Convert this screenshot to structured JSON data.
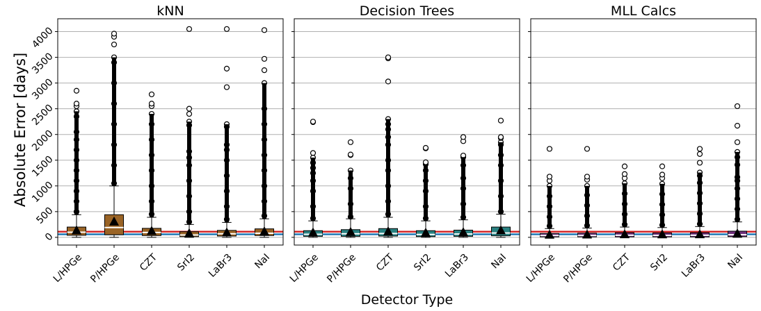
{
  "figure": {
    "ylabel": "Absolute Error [days]",
    "xlabel": "Detector Type"
  },
  "colors": {
    "red_line": "#d62728",
    "blue_line": "#1f77b4",
    "knn_box": "#9a6426",
    "dt_box": "#2a8282",
    "mll_box": "#6e2f7a",
    "grid": "#b0b0b0"
  },
  "chart_data": [
    {
      "type": "box",
      "title": "kNN",
      "categories": [
        "L/HPGe",
        "P/HPGe",
        "CZT",
        "SrI2",
        "LaBr3",
        "NaI"
      ],
      "yticks": [
        0,
        500,
        1000,
        1500,
        2000,
        2500,
        3000,
        3500,
        4000
      ],
      "ylim": [
        -150,
        4250
      ],
      "grid": "y",
      "reference_lines": [
        {
          "color": "red",
          "value": 110
        },
        {
          "color": "blue",
          "value": 60
        }
      ],
      "box_color": "#9a6426",
      "boxes": [
        {
          "q1": 40,
          "median": 100,
          "q3": 200,
          "whisker_low": 0,
          "whisker_high": 440,
          "mean": 140,
          "fliers": [
            500,
            700,
            900,
            1100,
            1300,
            1500,
            1700,
            1900,
            2050,
            2350,
            2450,
            2550,
            2600,
            2850
          ]
        },
        {
          "q1": 50,
          "median": 190,
          "q3": 440,
          "whisker_low": 0,
          "whisker_high": 1000,
          "mean": 310,
          "fliers": [
            1050,
            1400,
            1800,
            2200,
            2600,
            3000,
            3400,
            3500,
            3750,
            3900,
            3960
          ]
        },
        {
          "q1": 35,
          "median": 95,
          "q3": 175,
          "whisker_low": 0,
          "whisker_high": 390,
          "mean": 130,
          "fliers": [
            450,
            700,
            1000,
            1300,
            1600,
            1900,
            2200,
            2400,
            2550,
            2600,
            2780
          ]
        },
        {
          "q1": 15,
          "median": 45,
          "q3": 110,
          "whisker_low": 0,
          "whisker_high": 250,
          "mean": 85,
          "fliers": [
            300,
            500,
            800,
            1100,
            1400,
            1550,
            1670,
            2180,
            2250,
            2400,
            2500,
            4050
          ]
        },
        {
          "q1": 25,
          "median": 70,
          "q3": 135,
          "whisker_low": 0,
          "whisker_high": 290,
          "mean": 100,
          "fliers": [
            350,
            600,
            900,
            1200,
            1500,
            1700,
            1800,
            2150,
            2200,
            2920,
            3280,
            4050
          ]
        },
        {
          "q1": 35,
          "median": 80,
          "q3": 165,
          "whisker_low": 0,
          "whisker_high": 360,
          "mean": 120,
          "fliers": [
            420,
            700,
            1000,
            1300,
            1600,
            1900,
            2200,
            2500,
            3000,
            3250,
            3470,
            4030
          ]
        }
      ]
    },
    {
      "type": "box",
      "title": "Decision Trees",
      "categories": [
        "L/HPGe",
        "P/HPGe",
        "CZT",
        "SrI2",
        "LaBr3",
        "NaI"
      ],
      "yticks": [
        0,
        500,
        1000,
        1500,
        2000,
        2500,
        3000,
        3500,
        4000
      ],
      "ylim": [
        -150,
        4250
      ],
      "grid": "y",
      "reference_lines": [
        {
          "color": "red",
          "value": 110
        },
        {
          "color": "blue",
          "value": 60
        }
      ],
      "box_color": "#2a8282",
      "boxes": [
        {
          "q1": 20,
          "median": 60,
          "q3": 130,
          "whisker_low": 0,
          "whisker_high": 320,
          "mean": 100,
          "fliers": [
            370,
            600,
            900,
            1100,
            1250,
            1350,
            1450,
            1550,
            1640,
            2240,
            2250
          ]
        },
        {
          "q1": 20,
          "median": 70,
          "q3": 150,
          "whisker_low": 0,
          "whisker_high": 360,
          "mean": 110,
          "fliers": [
            400,
            650,
            950,
            1150,
            1300,
            1600,
            1610,
            1850
          ]
        },
        {
          "q1": 25,
          "median": 75,
          "q3": 170,
          "whisker_low": 0,
          "whisker_high": 390,
          "mean": 120,
          "fliers": [
            450,
            700,
            1000,
            1300,
            1500,
            1800,
            1950,
            2100,
            2200,
            2300,
            3030,
            3480,
            3500
          ]
        },
        {
          "q1": 15,
          "median": 55,
          "q3": 130,
          "whisker_low": 0,
          "whisker_high": 320,
          "mean": 95,
          "fliers": [
            370,
            600,
            900,
            1100,
            1300,
            1420,
            1460,
            1730,
            1740
          ]
        },
        {
          "q1": 20,
          "median": 65,
          "q3": 140,
          "whisker_low": 0,
          "whisker_high": 340,
          "mean": 105,
          "fliers": [
            390,
            650,
            950,
            1150,
            1400,
            1560,
            1590,
            1870,
            1950
          ]
        },
        {
          "q1": 30,
          "median": 85,
          "q3": 200,
          "whisker_low": 0,
          "whisker_high": 450,
          "mean": 140,
          "fliers": [
            500,
            800,
            1100,
            1400,
            1600,
            1800,
            1850,
            1930,
            1950,
            2270
          ]
        }
      ]
    },
    {
      "type": "box",
      "title": "MLL Calcs",
      "categories": [
        "L/HPGe",
        "P/HPGe",
        "CZT",
        "SrI2",
        "LaBr3",
        "NaI"
      ],
      "yticks": [
        0,
        500,
        1000,
        1500,
        2000,
        2500,
        3000,
        3500,
        4000
      ],
      "ylim": [
        -150,
        4250
      ],
      "grid": "y",
      "reference_lines": [
        {
          "color": "red",
          "value": 110
        },
        {
          "color": "blue",
          "value": 60
        }
      ],
      "box_color": "#6e2f7a",
      "boxes": [
        {
          "q1": 10,
          "median": 35,
          "q3": 75,
          "whisker_low": 0,
          "whisker_high": 170,
          "mean": 55,
          "fliers": [
            220,
            400,
            600,
            800,
            1000,
            1100,
            1180,
            1720
          ]
        },
        {
          "q1": 10,
          "median": 35,
          "q3": 80,
          "whisker_low": 0,
          "whisker_high": 180,
          "mean": 60,
          "fliers": [
            230,
            420,
            620,
            820,
            1000,
            1120,
            1180,
            1720
          ]
        },
        {
          "q1": 10,
          "median": 40,
          "q3": 90,
          "whisker_low": 0,
          "whisker_high": 200,
          "mean": 65,
          "fliers": [
            250,
            450,
            650,
            850,
            1050,
            1150,
            1230,
            1380
          ]
        },
        {
          "q1": 10,
          "median": 38,
          "q3": 85,
          "whisker_low": 0,
          "whisker_high": 190,
          "mean": 62,
          "fliers": [
            240,
            440,
            640,
            840,
            1040,
            1150,
            1220,
            1380
          ]
        },
        {
          "q1": 10,
          "median": 40,
          "q3": 90,
          "whisker_low": 0,
          "whisker_high": 210,
          "mean": 65,
          "fliers": [
            260,
            460,
            660,
            860,
            1060,
            1200,
            1260,
            1450,
            1620,
            1720
          ]
        },
        {
          "q1": 15,
          "median": 50,
          "q3": 120,
          "whisker_low": 0,
          "whisker_high": 300,
          "mean": 80,
          "fliers": [
            350,
            550,
            750,
            950,
            1100,
            1170,
            1410,
            1560,
            1660,
            1850,
            2170,
            2550
          ]
        }
      ]
    }
  ]
}
